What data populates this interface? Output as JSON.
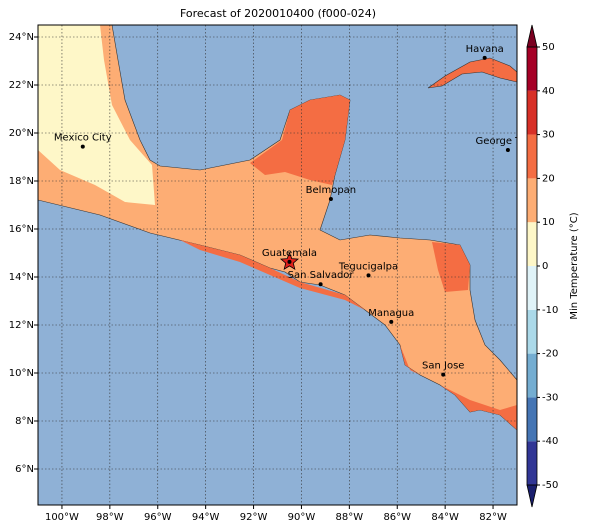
{
  "title": "Forecast of 2020010400 (f000-024)",
  "map": {
    "type": "map",
    "lonlim": [
      -101,
      -81
    ],
    "latlim": [
      4.5,
      24.5
    ],
    "lonticks": [
      {
        "value": -100,
        "label": "100°W"
      },
      {
        "value": -98,
        "label": "98°W"
      },
      {
        "value": -96,
        "label": "96°W"
      },
      {
        "value": -94,
        "label": "94°W"
      },
      {
        "value": -92,
        "label": "92°W"
      },
      {
        "value": -90,
        "label": "90°W"
      },
      {
        "value": -88,
        "label": "88°W"
      },
      {
        "value": -86,
        "label": "86°W"
      },
      {
        "value": -84,
        "label": "84°W"
      },
      {
        "value": -82,
        "label": "82°W"
      }
    ],
    "latticks": [
      {
        "value": 6,
        "label": "6°N"
      },
      {
        "value": 8,
        "label": "8°N"
      },
      {
        "value": 10,
        "label": "10°N"
      },
      {
        "value": 12,
        "label": "12°N"
      },
      {
        "value": 14,
        "label": "14°N"
      },
      {
        "value": 16,
        "label": "16°N"
      },
      {
        "value": 18,
        "label": "18°N"
      },
      {
        "value": 20,
        "label": "20°N"
      },
      {
        "value": 22,
        "label": "22°N"
      },
      {
        "value": 24,
        "label": "24°N"
      }
    ],
    "grid": true,
    "cities": [
      {
        "name": "Havana",
        "lon": -82.35,
        "lat": 23.13
      },
      {
        "name": "Mexico City",
        "lon": -99.13,
        "lat": 19.43
      },
      {
        "name": "George Town",
        "lon": -81.38,
        "lat": 19.29
      },
      {
        "name": "Belmopan",
        "lon": -88.77,
        "lat": 17.25
      },
      {
        "name": "Guatemala",
        "lon": -90.5,
        "lat": 14.63
      },
      {
        "name": "San Salvador",
        "lon": -89.2,
        "lat": 13.7
      },
      {
        "name": "Tegucigalpa",
        "lon": -87.2,
        "lat": 14.07
      },
      {
        "name": "Managua",
        "lon": -86.25,
        "lat": 12.13
      },
      {
        "name": "San Jose",
        "lon": -84.08,
        "lat": 9.93
      }
    ],
    "star_city": 4
  },
  "colorbar": {
    "label": "Min Temperature (°C)",
    "lim": [
      -50,
      50
    ],
    "ticks": [
      -50,
      -40,
      -30,
      -20,
      -10,
      0,
      10,
      20,
      30,
      40,
      50
    ],
    "colors": [
      "#313695",
      "#4575b4",
      "#74add1",
      "#abd9e9",
      "#e0f3f8",
      "#fef7c8",
      "#fdad74",
      "#f46d43",
      "#d73027",
      "#a50026"
    ],
    "extend_colors": [
      "#1a1f6e",
      "#7a0020"
    ]
  }
}
